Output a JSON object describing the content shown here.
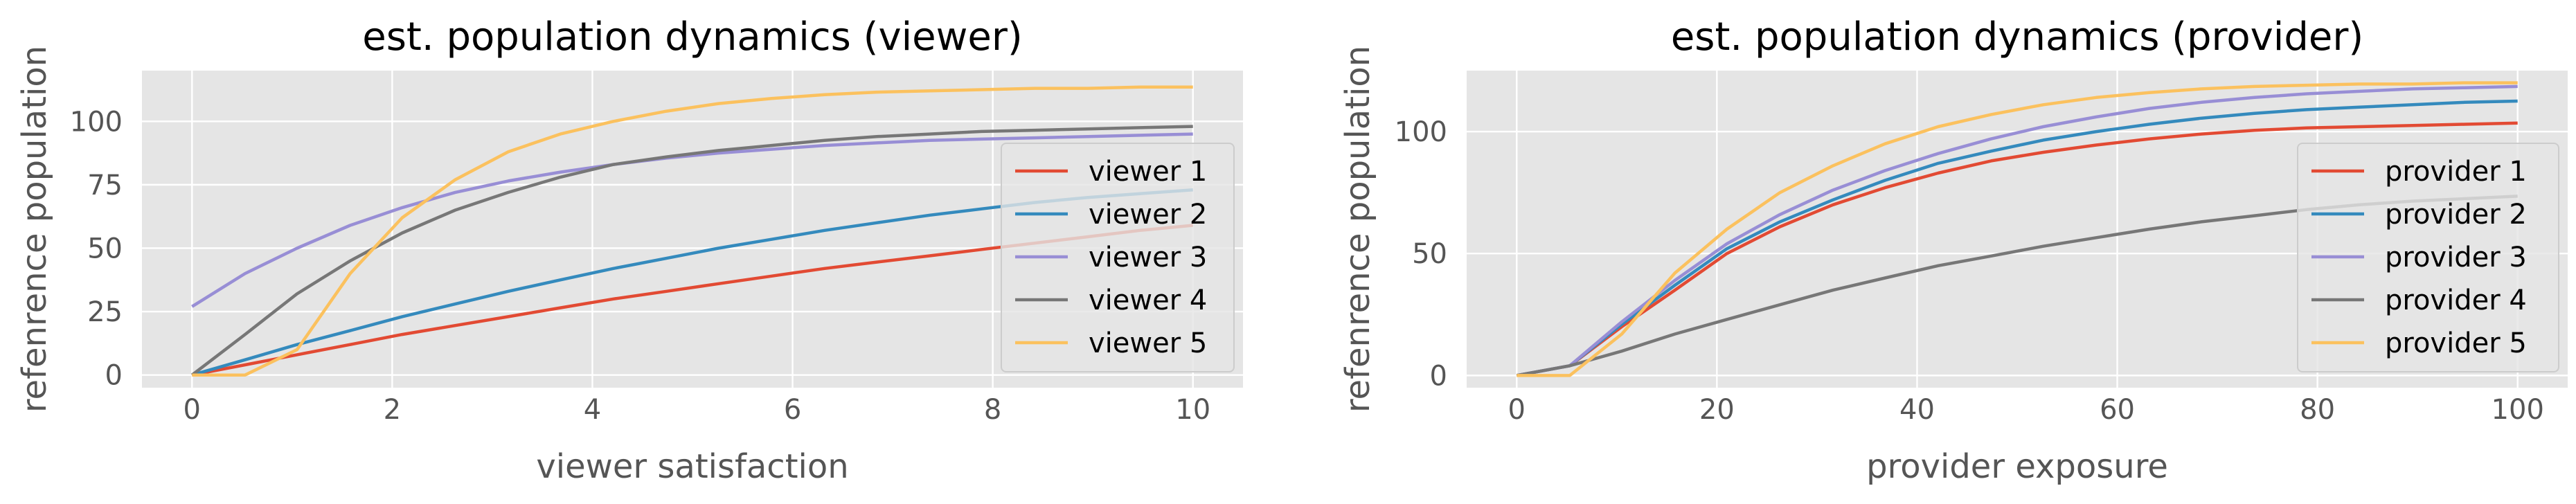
{
  "colors": {
    "plot_background": "#E5E5E5",
    "grid": "#FFFFFF",
    "tick_label": "#555555",
    "series": [
      "#E24A33",
      "#348ABD",
      "#988ED5",
      "#777777",
      "#FBC15E"
    ]
  },
  "chart_data": [
    {
      "type": "line",
      "title": "est. population dynamics (viewer)",
      "xlabel": "viewer satisfaction",
      "ylabel": "refenrence population",
      "xlim": [
        -0.5,
        10.5
      ],
      "ylim": [
        -5,
        120
      ],
      "xticks": [
        0,
        2,
        4,
        6,
        8,
        10
      ],
      "yticks": [
        0,
        25,
        50,
        75,
        100
      ],
      "grid": true,
      "legend_position": "center-right",
      "x": [
        0,
        0.53,
        1.05,
        1.58,
        2.1,
        2.63,
        3.16,
        3.68,
        4.21,
        4.74,
        5.26,
        5.79,
        6.32,
        6.84,
        7.37,
        7.89,
        8.42,
        8.95,
        9.47,
        10
      ],
      "series": [
        {
          "name": "viewer 1",
          "values": [
            0,
            4,
            8,
            12,
            16,
            19.5,
            23,
            26.5,
            30,
            33,
            36,
            39,
            42,
            44.5,
            47,
            49.5,
            52,
            54.5,
            57,
            59
          ]
        },
        {
          "name": "viewer 2",
          "values": [
            0,
            6,
            12,
            17.5,
            23,
            28,
            33,
            37.5,
            42,
            46,
            50,
            53.5,
            57,
            60,
            63,
            65.5,
            68,
            70,
            71.5,
            73
          ]
        },
        {
          "name": "viewer 3",
          "values": [
            27,
            40,
            50,
            59,
            66,
            72,
            76.5,
            80,
            83,
            85.5,
            87.5,
            89,
            90.5,
            91.5,
            92.5,
            93,
            93.5,
            94,
            94.5,
            95
          ]
        },
        {
          "name": "viewer 4",
          "values": [
            0,
            16,
            32,
            45,
            56,
            65,
            72,
            78,
            83,
            86,
            88.5,
            90.5,
            92.5,
            94,
            95,
            96,
            96.5,
            97,
            97.5,
            98
          ]
        },
        {
          "name": "viewer 5",
          "values": [
            0,
            0,
            10,
            40,
            62,
            77,
            88,
            95,
            100,
            104,
            107,
            109,
            110.5,
            111.5,
            112,
            112.5,
            113,
            113,
            113.5,
            113.5
          ]
        }
      ]
    },
    {
      "type": "line",
      "title": "est. population dynamics (provider)",
      "xlabel": "provider exposure",
      "ylabel": "refenrence population",
      "xlim": [
        -5,
        105
      ],
      "ylim": [
        -5,
        125
      ],
      "xticks": [
        0,
        20,
        40,
        60,
        80,
        100
      ],
      "yticks": [
        0,
        50,
        100
      ],
      "grid": true,
      "legend_position": "center-right",
      "x": [
        0,
        5.3,
        10.5,
        15.8,
        21,
        26.3,
        31.6,
        36.8,
        42.1,
        47.4,
        52.6,
        57.9,
        63.2,
        68.4,
        73.7,
        78.9,
        84.2,
        89.5,
        94.7,
        100
      ],
      "series": [
        {
          "name": "provider 1",
          "values": [
            0,
            4,
            20,
            35,
            50,
            61,
            70,
            77,
            83,
            88,
            91.5,
            94.5,
            97,
            99,
            100.5,
            101.5,
            102,
            102.5,
            103,
            103.5
          ]
        },
        {
          "name": "provider 2",
          "values": [
            0,
            4,
            21,
            37,
            52,
            63,
            72,
            80,
            87,
            92,
            96.5,
            100,
            103,
            105.5,
            107.5,
            109,
            110,
            111,
            112,
            112.5
          ]
        },
        {
          "name": "provider 3",
          "values": [
            0,
            4,
            22,
            39,
            54,
            66,
            76,
            84,
            91,
            97,
            102,
            106,
            109.5,
            112,
            114,
            115.5,
            116.5,
            117.5,
            118,
            118.5
          ]
        },
        {
          "name": "provider 4",
          "values": [
            0,
            4,
            10,
            17,
            23,
            29,
            35,
            40,
            45,
            49,
            53,
            56.5,
            60,
            63,
            65.5,
            68,
            70,
            71.5,
            72.5,
            73.5
          ]
        },
        {
          "name": "provider 5",
          "values": [
            0,
            0,
            17,
            42,
            60,
            75,
            86,
            95,
            102,
            107,
            111,
            114,
            116,
            117.5,
            118.5,
            119,
            119.5,
            119.5,
            120,
            120
          ]
        }
      ]
    }
  ]
}
